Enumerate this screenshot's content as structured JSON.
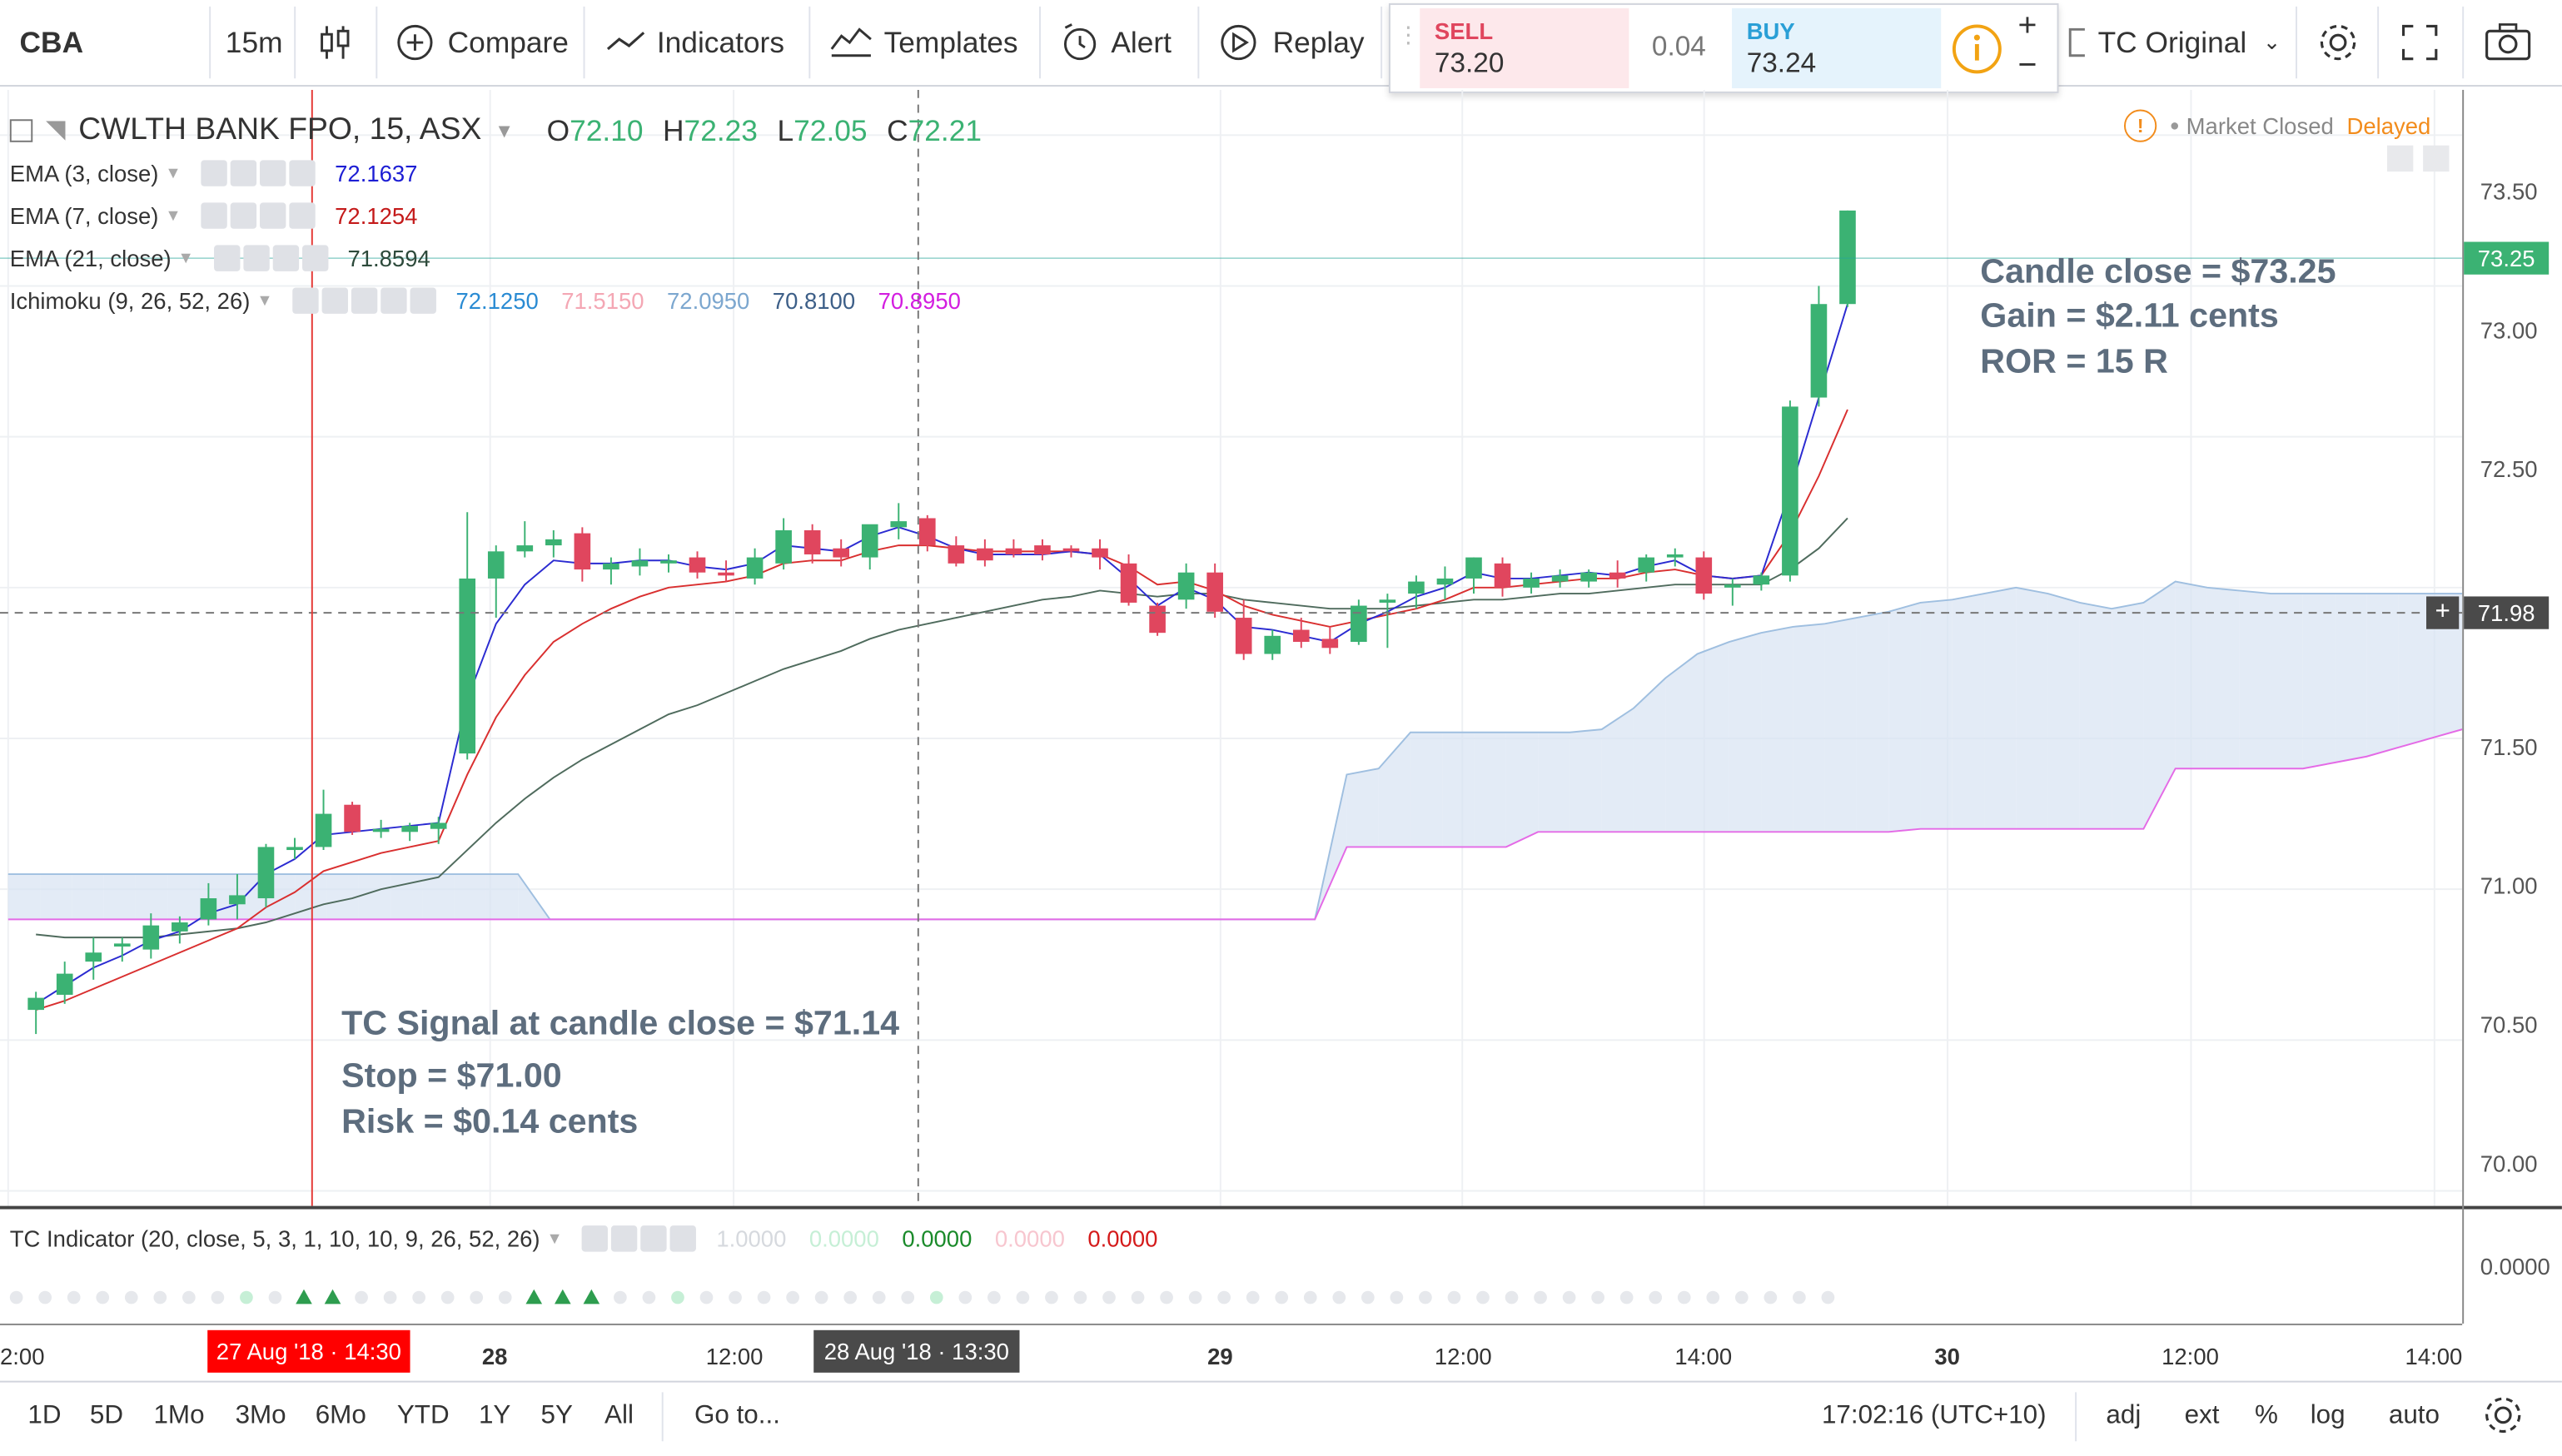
{
  "toolbar": {
    "symbol": "CBA",
    "interval": "15m",
    "compare": "Compare",
    "indicators": "Indicators",
    "templates": "Templates",
    "alert": "Alert",
    "replay": "Replay",
    "sell_label": "SELL",
    "sell_price": "73.20",
    "spread": "0.04",
    "buy_label": "BUY",
    "buy_price": "73.24",
    "layout_name": "TC Original"
  },
  "header": {
    "title": "CWLTH BANK FPO, 15, ASX",
    "o_label": "O",
    "o_value": "72.10",
    "h_label": "H",
    "h_value": "72.23",
    "l_label": "L",
    "l_value": "72.05",
    "c_label": "C",
    "c_value": "72.21",
    "status_text": "Market Closed",
    "delayed": "Delayed"
  },
  "indicators": [
    {
      "name": "EMA (3, close)",
      "values": [
        "72.1637"
      ],
      "colors": [
        "#1d1ed4"
      ]
    },
    {
      "name": "EMA (7, close)",
      "values": [
        "72.1254"
      ],
      "colors": [
        "#c41a1a"
      ]
    },
    {
      "name": "EMA (21, close)",
      "values": [
        "71.8594"
      ],
      "colors": [
        "#2d4a3b"
      ]
    },
    {
      "name": "Ichimoku (9, 26, 52, 26)",
      "values": [
        "72.1250",
        "71.5150",
        "72.0950",
        "70.8100",
        "70.8950"
      ],
      "colors": [
        "#2a8bd3",
        "#f4a7b4",
        "#7ca7cf",
        "#3d5f88",
        "#d31ee0"
      ]
    }
  ],
  "annotations": {
    "result_line1": "Candle close = $73.25",
    "result_line2": "Gain = $2.11 cents",
    "result_line3": "ROR = 15 R",
    "signal_line1": "TC Signal at candle close = $71.14",
    "signal_line2": "Stop = $71.00",
    "signal_line3": "Risk = $0.14 cents"
  },
  "price_scale": {
    "labels": [
      "73.50",
      "73.00",
      "72.50",
      "72.00",
      "71.50",
      "71.00",
      "70.50",
      "70.00"
    ],
    "last_price": "73.25",
    "crosshair_price": "71.98",
    "tc_value": "0.0000"
  },
  "tc_indicator": {
    "name": "TC Indicator (20, close, 5, 3, 1, 10, 10, 9, 26, 52, 26)",
    "values": [
      "1.0000",
      "0.0000",
      "0.0000",
      "0.0000",
      "0.0000"
    ],
    "colors": [
      "#d6d9de",
      "#c6efd6",
      "#1a8a2a",
      "#f7c6cf",
      "#d41a1a"
    ]
  },
  "time_axis": {
    "labels": [
      "2:00",
      "28",
      "12:00",
      "29",
      "12:00",
      "14:00",
      "30",
      "12:00",
      "14:00"
    ],
    "marker_red": "27 Aug '18 · 14:30",
    "marker_dark": "28 Aug '18 · 13:30"
  },
  "bottom_bar": {
    "ranges": [
      "1D",
      "5D",
      "1Mo",
      "3Mo",
      "6Mo",
      "YTD",
      "1Y",
      "5Y",
      "All"
    ],
    "goto": "Go to...",
    "time": "17:02:16 (UTC+10)",
    "adj": "adj",
    "ext": "ext",
    "pct": "%",
    "log": "log",
    "auto": "auto"
  },
  "colors": {
    "up": "#3bb273",
    "down": "#e0465e",
    "accent": "#26a69a",
    "warn": "#f28c1c"
  },
  "chart_data": {
    "type": "candlestick",
    "interval": "15m",
    "candles": [
      {
        "t": "27 Aug 12:00",
        "o": 70.6,
        "h": 70.66,
        "l": 70.52,
        "c": 70.64
      },
      {
        "t": "27 Aug 12:15",
        "o": 70.65,
        "h": 70.76,
        "l": 70.62,
        "c": 70.72
      },
      {
        "t": "27 Aug 12:30",
        "o": 70.76,
        "h": 70.84,
        "l": 70.7,
        "c": 70.79
      },
      {
        "t": "27 Aug 12:45",
        "o": 70.81,
        "h": 70.84,
        "l": 70.76,
        "c": 70.82
      },
      {
        "t": "27 Aug 13:00",
        "o": 70.8,
        "h": 70.92,
        "l": 70.77,
        "c": 70.88
      },
      {
        "t": "27 Aug 13:15",
        "o": 70.86,
        "h": 70.91,
        "l": 70.82,
        "c": 70.89
      },
      {
        "t": "27 Aug 13:30",
        "o": 70.9,
        "h": 71.02,
        "l": 70.88,
        "c": 70.97
      },
      {
        "t": "27 Aug 13:45",
        "o": 70.95,
        "h": 71.05,
        "l": 70.9,
        "c": 70.98
      },
      {
        "t": "27 Aug 14:00",
        "o": 70.97,
        "h": 71.15,
        "l": 70.94,
        "c": 71.14
      },
      {
        "t": "27 Aug 14:15",
        "o": 71.13,
        "h": 71.17,
        "l": 71.1,
        "c": 71.14
      },
      {
        "t": "27 Aug 14:30",
        "o": 71.14,
        "h": 71.33,
        "l": 71.13,
        "c": 71.25
      },
      {
        "t": "27 Aug 14:45",
        "o": 71.28,
        "h": 71.29,
        "l": 71.18,
        "c": 71.19
      },
      {
        "t": "27 Aug 15:00",
        "o": 71.19,
        "h": 71.23,
        "l": 71.17,
        "c": 71.2
      },
      {
        "t": "27 Aug 15:15",
        "o": 71.19,
        "h": 71.22,
        "l": 71.16,
        "c": 71.21
      },
      {
        "t": "27 Aug 15:30",
        "o": 71.2,
        "h": 71.24,
        "l": 71.15,
        "c": 71.22
      },
      {
        "t": "27 Aug 15:45",
        "o": 71.45,
        "h": 72.25,
        "l": 71.43,
        "c": 72.03
      },
      {
        "t": "28 Aug 10:00",
        "o": 72.03,
        "h": 72.14,
        "l": 71.9,
        "c": 72.12
      },
      {
        "t": "28 Aug 10:15",
        "o": 72.12,
        "h": 72.22,
        "l": 72.1,
        "c": 72.14
      },
      {
        "t": "28 Aug 10:30",
        "o": 72.14,
        "h": 72.19,
        "l": 72.1,
        "c": 72.16
      },
      {
        "t": "28 Aug 10:45",
        "o": 72.18,
        "h": 72.2,
        "l": 72.02,
        "c": 72.06
      },
      {
        "t": "28 Aug 11:00",
        "o": 72.06,
        "h": 72.1,
        "l": 72.01,
        "c": 72.08
      },
      {
        "t": "28 Aug 11:15",
        "o": 72.07,
        "h": 72.13,
        "l": 72.04,
        "c": 72.09
      },
      {
        "t": "28 Aug 11:30",
        "o": 72.08,
        "h": 72.11,
        "l": 72.05,
        "c": 72.09
      },
      {
        "t": "28 Aug 11:45",
        "o": 72.1,
        "h": 72.12,
        "l": 72.03,
        "c": 72.05
      },
      {
        "t": "28 Aug 12:00",
        "o": 72.05,
        "h": 72.09,
        "l": 72.02,
        "c": 72.04
      },
      {
        "t": "28 Aug 12:15",
        "o": 72.03,
        "h": 72.13,
        "l": 72.01,
        "c": 72.1
      },
      {
        "t": "28 Aug 12:30",
        "o": 72.08,
        "h": 72.23,
        "l": 72.06,
        "c": 72.19
      },
      {
        "t": "28 Aug 12:45",
        "o": 72.19,
        "h": 72.21,
        "l": 72.08,
        "c": 72.11
      },
      {
        "t": "28 Aug 13:00",
        "o": 72.13,
        "h": 72.16,
        "l": 72.07,
        "c": 72.1
      },
      {
        "t": "28 Aug 13:15",
        "o": 72.1,
        "h": 72.2,
        "l": 72.06,
        "c": 72.21
      },
      {
        "t": "28 Aug 13:30",
        "o": 72.2,
        "h": 72.28,
        "l": 72.16,
        "c": 72.22
      },
      {
        "t": "28 Aug 13:45",
        "o": 72.23,
        "h": 72.24,
        "l": 72.12,
        "c": 72.14
      },
      {
        "t": "28 Aug 14:00",
        "o": 72.14,
        "h": 72.17,
        "l": 72.07,
        "c": 72.08
      },
      {
        "t": "28 Aug 14:15",
        "o": 72.13,
        "h": 72.16,
        "l": 72.07,
        "c": 72.09
      },
      {
        "t": "28 Aug 14:30",
        "o": 72.13,
        "h": 72.16,
        "l": 72.1,
        "c": 72.11
      },
      {
        "t": "28 Aug 14:45",
        "o": 72.14,
        "h": 72.16,
        "l": 72.09,
        "c": 72.11
      },
      {
        "t": "28 Aug 15:00",
        "o": 72.13,
        "h": 72.14,
        "l": 72.1,
        "c": 72.12
      },
      {
        "t": "28 Aug 15:15",
        "o": 72.13,
        "h": 72.16,
        "l": 72.06,
        "c": 72.1
      },
      {
        "t": "28 Aug 15:30",
        "o": 72.08,
        "h": 72.11,
        "l": 71.94,
        "c": 71.95
      },
      {
        "t": "28 Aug 15:45",
        "o": 71.94,
        "h": 71.95,
        "l": 71.84,
        "c": 71.85
      },
      {
        "t": "29 Aug 10:00",
        "o": 71.96,
        "h": 72.08,
        "l": 71.93,
        "c": 72.05
      },
      {
        "t": "29 Aug 10:15",
        "o": 72.05,
        "h": 72.08,
        "l": 71.9,
        "c": 71.92
      },
      {
        "t": "29 Aug 10:30",
        "o": 71.9,
        "h": 71.96,
        "l": 71.76,
        "c": 71.78
      },
      {
        "t": "29 Aug 10:45",
        "o": 71.78,
        "h": 71.86,
        "l": 71.76,
        "c": 71.84
      },
      {
        "t": "29 Aug 11:00",
        "o": 71.86,
        "h": 71.9,
        "l": 71.8,
        "c": 71.82
      },
      {
        "t": "29 Aug 11:15",
        "o": 71.83,
        "h": 71.87,
        "l": 71.78,
        "c": 71.8
      },
      {
        "t": "29 Aug 11:30",
        "o": 71.82,
        "h": 71.96,
        "l": 71.81,
        "c": 71.94
      },
      {
        "t": "29 Aug 11:45",
        "o": 71.95,
        "h": 71.98,
        "l": 71.8,
        "c": 71.96
      },
      {
        "t": "29 Aug 12:00",
        "o": 71.98,
        "h": 72.04,
        "l": 71.93,
        "c": 72.02
      },
      {
        "t": "29 Aug 12:15",
        "o": 72.01,
        "h": 72.07,
        "l": 71.96,
        "c": 72.03
      },
      {
        "t": "29 Aug 12:30",
        "o": 72.03,
        "h": 72.1,
        "l": 71.98,
        "c": 72.1
      },
      {
        "t": "29 Aug 12:45",
        "o": 72.08,
        "h": 72.1,
        "l": 71.97,
        "c": 72.0
      },
      {
        "t": "29 Aug 13:00",
        "o": 72.0,
        "h": 72.05,
        "l": 71.98,
        "c": 72.03
      },
      {
        "t": "29 Aug 13:15",
        "o": 72.02,
        "h": 72.06,
        "l": 72.0,
        "c": 72.04
      },
      {
        "t": "29 Aug 13:30",
        "o": 72.02,
        "h": 72.06,
        "l": 72.0,
        "c": 72.05
      },
      {
        "t": "29 Aug 13:45",
        "o": 72.05,
        "h": 72.09,
        "l": 72.0,
        "c": 72.03
      },
      {
        "t": "29 Aug 14:00",
        "o": 72.05,
        "h": 72.11,
        "l": 72.02,
        "c": 72.1
      },
      {
        "t": "29 Aug 14:15",
        "o": 72.1,
        "h": 72.13,
        "l": 72.07,
        "c": 72.11
      },
      {
        "t": "29 Aug 14:30",
        "o": 72.1,
        "h": 72.12,
        "l": 71.96,
        "c": 71.98
      },
      {
        "t": "29 Aug 14:45",
        "o": 72.0,
        "h": 72.03,
        "l": 71.94,
        "c": 72.01
      },
      {
        "t": "29 Aug 15:00",
        "o": 72.01,
        "h": 72.05,
        "l": 71.99,
        "c": 72.04
      },
      {
        "t": "29 Aug 15:15",
        "o": 72.04,
        "h": 72.62,
        "l": 72.02,
        "c": 72.6
      },
      {
        "t": "29 Aug 15:30",
        "o": 72.63,
        "h": 73.0,
        "l": 72.6,
        "c": 72.94
      },
      {
        "t": "29 Aug 15:45",
        "o": 72.94,
        "h": 73.25,
        "l": 72.93,
        "c": 73.25
      }
    ],
    "y_range": [
      69.95,
      73.65
    ],
    "y_ticks": [
      70.0,
      70.5,
      71.0,
      71.5,
      72.0,
      72.5,
      73.0,
      73.5
    ],
    "ema3": [
      70.62,
      70.68,
      70.74,
      70.78,
      70.83,
      70.86,
      70.92,
      70.95,
      71.05,
      71.1,
      71.18,
      71.19,
      71.2,
      71.21,
      71.22,
      71.63,
      71.88,
      72.01,
      72.09,
      72.08,
      72.08,
      72.09,
      72.09,
      72.07,
      72.06,
      72.08,
      72.14,
      72.13,
      72.12,
      72.17,
      72.2,
      72.17,
      72.13,
      72.11,
      72.11,
      72.11,
      72.12,
      72.11,
      72.03,
      71.94,
      72.0,
      71.96,
      71.87,
      71.86,
      71.84,
      71.82,
      71.88,
      71.92,
      71.97,
      72.0,
      72.05,
      72.03,
      72.03,
      72.04,
      72.05,
      72.04,
      72.07,
      72.09,
      72.04,
      72.03,
      72.04,
      72.32,
      72.63,
      72.94
    ],
    "ema7": [
      70.6,
      70.63,
      70.67,
      70.71,
      70.75,
      70.79,
      70.83,
      70.87,
      70.94,
      70.99,
      71.06,
      71.09,
      71.12,
      71.14,
      71.16,
      71.38,
      71.57,
      71.71,
      71.82,
      71.88,
      71.93,
      71.97,
      72.0,
      72.01,
      72.02,
      72.04,
      72.08,
      72.09,
      72.09,
      72.12,
      72.14,
      72.14,
      72.13,
      72.12,
      72.12,
      72.12,
      72.12,
      72.11,
      72.07,
      72.01,
      72.02,
      71.99,
      71.94,
      71.91,
      71.89,
      71.87,
      71.89,
      71.91,
      71.93,
      71.96,
      72.0,
      72.0,
      72.01,
      72.02,
      72.03,
      72.03,
      72.05,
      72.06,
      72.04,
      72.03,
      72.04,
      72.18,
      72.37,
      72.59
    ],
    "ema21": [
      70.85,
      70.84,
      70.84,
      70.84,
      70.84,
      70.85,
      70.86,
      70.87,
      70.89,
      70.92,
      70.95,
      70.97,
      71.0,
      71.02,
      71.04,
      71.13,
      71.22,
      71.3,
      71.37,
      71.43,
      71.48,
      71.53,
      71.58,
      71.61,
      71.65,
      71.69,
      71.73,
      71.76,
      71.79,
      71.83,
      71.86,
      71.88,
      71.9,
      71.92,
      71.94,
      71.96,
      71.97,
      71.99,
      71.98,
      71.97,
      71.98,
      71.98,
      71.96,
      71.95,
      71.94,
      71.93,
      71.93,
      71.93,
      71.94,
      71.95,
      71.96,
      71.96,
      71.97,
      71.98,
      71.98,
      71.99,
      72.0,
      72.01,
      72.01,
      72.01,
      72.01,
      72.06,
      72.13,
      72.23
    ],
    "ichimoku_span_a": [
      71.05,
      71.05,
      71.05,
      71.05,
      71.05,
      71.05,
      71.05,
      71.05,
      71.05,
      71.05,
      71.05,
      71.05,
      71.05,
      71.05,
      71.05,
      71.05,
      71.05,
      70.9,
      70.9,
      70.9,
      70.9,
      70.9,
      70.9,
      70.9,
      70.9,
      70.9,
      70.9,
      70.9,
      70.9,
      70.9,
      70.9,
      70.9,
      70.9,
      70.9,
      70.9,
      70.9,
      70.9,
      70.9,
      70.9,
      70.9,
      70.9,
      70.9,
      71.38,
      71.4,
      71.52,
      71.52,
      71.52,
      71.52,
      71.52,
      71.52,
      71.53,
      71.6,
      71.7,
      71.78,
      71.82,
      71.85,
      71.87,
      71.88,
      71.9,
      71.92,
      71.95,
      71.96,
      71.98,
      72.0,
      71.98,
      71.95,
      71.93,
      71.95,
      72.02,
      72.0,
      71.99,
      71.98,
      71.98,
      71.98,
      71.98,
      71.98,
      71.98,
      71.98
    ],
    "ichimoku_span_b": [
      70.9,
      70.9,
      70.9,
      70.9,
      70.9,
      70.9,
      70.9,
      70.9,
      70.9,
      70.9,
      70.9,
      70.9,
      70.9,
      70.9,
      70.9,
      70.9,
      70.9,
      70.9,
      70.9,
      70.9,
      70.9,
      70.9,
      70.9,
      70.9,
      70.9,
      70.9,
      70.9,
      70.9,
      70.9,
      70.9,
      70.9,
      70.9,
      70.9,
      70.9,
      70.9,
      70.9,
      70.9,
      70.9,
      70.9,
      70.9,
      70.9,
      70.9,
      71.14,
      71.14,
      71.14,
      71.14,
      71.14,
      71.14,
      71.19,
      71.19,
      71.19,
      71.19,
      71.19,
      71.19,
      71.19,
      71.19,
      71.19,
      71.19,
      71.19,
      71.19,
      71.2,
      71.2,
      71.2,
      71.2,
      71.2,
      71.2,
      71.2,
      71.2,
      71.4,
      71.4,
      71.4,
      71.4,
      71.4,
      71.42,
      71.44,
      71.47,
      71.5,
      71.53
    ]
  }
}
